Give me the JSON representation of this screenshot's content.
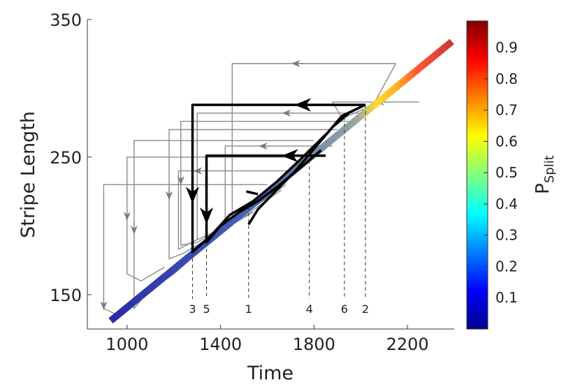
{
  "chart_data": {
    "type": "line",
    "title": "",
    "xlabel": "Time",
    "ylabel": "Stripe Length",
    "xlim": [
      830,
      2400
    ],
    "ylim": [
      125,
      350
    ],
    "xticks": [
      1000,
      1400,
      1800,
      2200
    ],
    "yticks": [
      150,
      250,
      350
    ],
    "grid": false,
    "colorbar": {
      "label_main": "P",
      "label_sub": "Split",
      "range": [
        0,
        0.985
      ],
      "ticks": [
        "0.1",
        "0.2",
        "0.3",
        "0.4",
        "0.5",
        "0.6",
        "0.7",
        "0.8",
        "0.9"
      ],
      "colormap": [
        "#00008f",
        "#0000ff",
        "#0080ff",
        "#00ffff",
        "#80ff80",
        "#ffff00",
        "#ff8000",
        "#ff0000",
        "#800000"
      ]
    },
    "colored_trajectory": {
      "x": [
        930,
        2390
      ],
      "y": [
        131,
        334
      ],
      "p_split": [
        0.02,
        0.95
      ]
    },
    "highlighted_events": [
      {
        "label": "3",
        "time": 1280
      },
      {
        "label": "5",
        "time": 1340
      },
      {
        "label": "1",
        "time": 1520
      },
      {
        "label": "4",
        "time": 1780
      },
      {
        "label": "6",
        "time": 1930
      },
      {
        "label": "2",
        "time": 2020
      }
    ],
    "highlighted_paths": [
      {
        "x": [
          2020,
          1280,
          1280,
          1360,
          1440,
          1540,
          1640,
          1740,
          1860,
          1920,
          2020
        ],
        "y": [
          288,
          288,
          181,
          193,
          208,
          218,
          232,
          248,
          268,
          280,
          288
        ]
      },
      {
        "x": [
          1850,
          1340,
          1340,
          1400,
          1480,
          1560,
          1640,
          1740,
          1830
        ],
        "y": [
          251,
          251,
          188,
          200,
          210,
          218,
          228,
          242,
          255
        ]
      },
      {
        "x": [
          1520,
          1560,
          1640,
          1720,
          1800,
          1880,
          1950
        ],
        "y": [
          201,
          212,
          226,
          240,
          256,
          272,
          282
        ]
      },
      {
        "x": [
          1510,
          1560
        ],
        "y": [
          225,
          223
        ]
      }
    ],
    "background_paths": [
      {
        "x": [
          2150,
          1450,
          1450,
          1480,
          1560,
          1660,
          1760,
          1860,
          1960,
          2060,
          2150
        ],
        "y": [
          318,
          318,
          205,
          210,
          220,
          232,
          246,
          260,
          274,
          290,
          318
        ],
        "arrow_at": [
          1740,
          318
        ]
      },
      {
        "x": [
          1800,
          1030,
          1030,
          1090,
          1200,
          1300,
          1400,
          1500
        ],
        "y": [
          262,
          262,
          140,
          152,
          165,
          180,
          195,
          210
        ],
        "arrow_at": [
          1030,
          200
        ]
      },
      {
        "x": [
          1700,
          1000,
          1000,
          1060,
          1160
        ],
        "y": [
          250,
          250,
          165,
          160,
          170
        ],
        "arrow_at": [
          1000,
          210
        ]
      },
      {
        "x": [
          1600,
          900,
          900,
          960,
          1060
        ],
        "y": [
          230,
          230,
          140,
          135,
          150
        ],
        "arrow_at": [
          900,
          145
        ]
      },
      {
        "x": [
          1900,
          1180,
          1180,
          1240,
          1340,
          1440,
          1540
        ],
        "y": [
          270,
          270,
          176,
          180,
          190,
          200,
          210
        ],
        "arrow_at": [
          1180,
          225
        ]
      },
      {
        "x": [
          1950,
          1230,
          1230,
          1300,
          1400,
          1500
        ],
        "y": [
          276,
          276,
          186,
          188,
          198,
          208
        ],
        "arrow_at": [
          1230,
          236
        ]
      },
      {
        "x": [
          2000,
          1300,
          1300,
          1380,
          1480,
          1580,
          1680
        ],
        "y": [
          282,
          282,
          190,
          196,
          206,
          218,
          230
        ],
        "arrow_at": [
          1700,
          282
        ]
      },
      {
        "x": [
          1880,
          1420,
          1420,
          1480,
          1560,
          1660
        ],
        "y": [
          258,
          258,
          199,
          204,
          214,
          226
        ],
        "arrow_at": [
          1600,
          258
        ]
      },
      {
        "x": [
          1700,
          1220,
          1220,
          1300
        ],
        "y": [
          240,
          240,
          183,
          190
        ],
        "arrow_at": [
          1320,
          240
        ]
      },
      {
        "x": [
          2250,
          1880,
          1920,
          2000,
          2080
        ],
        "y": [
          290,
          290,
          278,
          284,
          290
        ],
        "arrow_at": [
          2100,
          290
        ]
      }
    ]
  }
}
